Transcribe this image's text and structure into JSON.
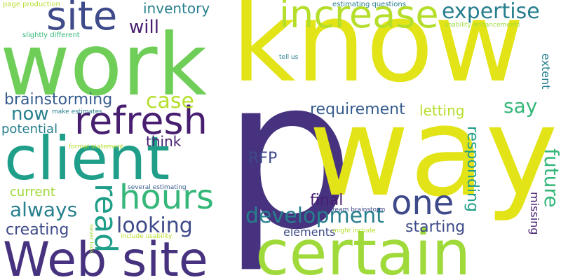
{
  "words": {
    "p": "p",
    "know": "know",
    "way": "way",
    "work": "work",
    "certain": "certain",
    "client": "client",
    "web_site": "Web site",
    "increase": "increase",
    "refresh": "refresh",
    "site": "site",
    "hours": "hours",
    "one": "one",
    "read": "read",
    "expertise": "expertise",
    "development": "development",
    "looking": "looking",
    "case": "case",
    "always": "always",
    "say": "say",
    "future": "future",
    "requirement": "requirement",
    "brainstorming": "brainstorming",
    "now": "now",
    "will": "will",
    "rfp": "RFP",
    "inventory": "inventory",
    "think": "think",
    "final": "final",
    "responding": "responding",
    "starting": "starting",
    "creating": "creating",
    "letting": "letting",
    "current": "current",
    "potential": "potential",
    "elements": "elements",
    "extent": "extent",
    "missing": "missing",
    "page_production": "page production",
    "estimating_questions": "estimating questions",
    "usability_enhancements": "usability enhancements",
    "slightly_different": "slightly different",
    "tell_us": "tell us",
    "make_estimates": "make estimates",
    "formal_statement": "formal statement",
    "several_estimating": "several estimating",
    "team_brainstorm": "team brainstorm",
    "never_look": "never look",
    "include_usability": "include usability",
    "might_include": "might include"
  },
  "colors": {
    "background": "#ffffff",
    "dark_purple": "#46327e",
    "indigo": "#3e4a89",
    "deep_purple": "#481f70",
    "blue": "#365c8d",
    "steel_blue": "#31688e",
    "teal": "#277f8e",
    "teal_green": "#1f9e89",
    "green": "#35b779",
    "lime": "#6ece58",
    "light_lime": "#9fda3a",
    "yellow_green": "#b5de2b",
    "yellow": "#e2e418"
  }
}
